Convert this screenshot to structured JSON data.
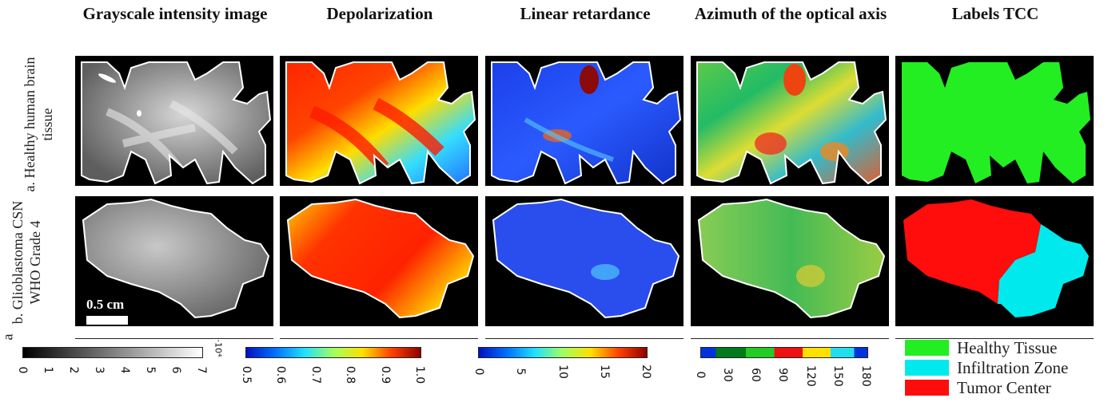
{
  "columns": [
    {
      "title": "Grayscale intensity image"
    },
    {
      "title": "Depolarization"
    },
    {
      "title": "Linear retardance"
    },
    {
      "title": "Azimuth of the optical axis"
    },
    {
      "title": "Labels TCC"
    }
  ],
  "rows": [
    {
      "label": "a. Healthy human brain tissue"
    },
    {
      "label": "b. Glioblastoma CSN WHO Grade 4"
    }
  ],
  "stray_label": "a",
  "scale_bar": {
    "label": "0.5 cm"
  },
  "colorbars": [
    {
      "ticks": [
        "0",
        "1",
        "2",
        "3",
        "4",
        "5",
        "6",
        "7"
      ],
      "exponent": "·10⁴"
    },
    {
      "ticks": [
        "0.5",
        "0.6",
        "0.7",
        "0.8",
        "0.9",
        "1.0"
      ]
    },
    {
      "ticks": [
        "0",
        "5",
        "10",
        "15",
        "20"
      ]
    },
    {
      "ticks": [
        "0",
        "30",
        "60",
        "90",
        "120",
        "150",
        "180"
      ]
    }
  ],
  "legend": [
    {
      "label": "Healthy Tissue",
      "color": "#22ee22"
    },
    {
      "label": "Infiltration Zone",
      "color": "#00eaee"
    },
    {
      "label": "Tumor Center",
      "color": "#ff0d0d"
    }
  ]
}
